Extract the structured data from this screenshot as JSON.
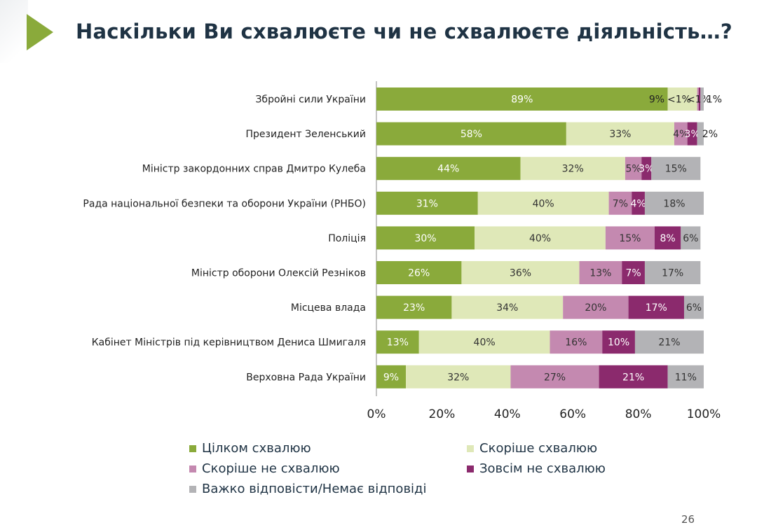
{
  "title": "Наскільки Ви схвалюєте чи не схвалюєте діяльність…?",
  "page_number": "26",
  "chart_data": {
    "type": "bar",
    "orientation": "horizontal",
    "stacked": true,
    "normalized": true,
    "title": "",
    "xlabel": "",
    "ylabel": "",
    "xlim": [
      0,
      100
    ],
    "grid": false,
    "legend_position": "bottom",
    "x_ticks": [
      "0%",
      "20%",
      "40%",
      "60%",
      "80%",
      "100%"
    ],
    "categories": [
      "Збройні сили України",
      "Президент Зеленський",
      "Міністр закордонних справ Дмитро Кулеба",
      "Рада національної безпеки та оборони України (РНБО)",
      "Поліція",
      "Міністр оборони Олексій Резніков",
      "Місцева влада",
      "Кабінет Міністрів під керівництвом Дениса Шмигаля",
      "Верховна Рада України"
    ],
    "series": [
      {
        "name": "Цілком схвалюю",
        "color": "#8aaa3b",
        "values": [
          89,
          58,
          44,
          31,
          30,
          26,
          23,
          13,
          9
        ],
        "labels": [
          "89%",
          "58%",
          "44%",
          "31%",
          "30%",
          "26%",
          "23%",
          "13%",
          "9%"
        ]
      },
      {
        "name": "Скоріше схвалюю",
        "color": "#dfe8b8",
        "values": [
          9,
          33,
          32,
          40,
          40,
          36,
          34,
          40,
          32
        ],
        "labels": [
          "9%",
          "33%",
          "32%",
          "40%",
          "40%",
          "36%",
          "34%",
          "40%",
          "32%"
        ]
      },
      {
        "name": "Скоріше не схвалюю",
        "color": "#c489b0",
        "values": [
          0.5,
          4,
          5,
          7,
          15,
          13,
          20,
          16,
          27
        ],
        "labels": [
          "<1%",
          "4%",
          "5%",
          "7%",
          "15%",
          "13%",
          "20%",
          "16%",
          "27%"
        ]
      },
      {
        "name": "Зовсім не схвалюю",
        "color": "#8b2a6d",
        "values": [
          0.5,
          3,
          3,
          4,
          8,
          7,
          17,
          10,
          21
        ],
        "labels": [
          "<1%",
          "3%",
          "3%",
          "4%",
          "8%",
          "7%",
          "17%",
          "10%",
          "21%"
        ]
      },
      {
        "name": "Важко відповісти/Немає відповіді",
        "color": "#b3b3b6",
        "values": [
          1,
          2,
          15,
          18,
          6,
          17,
          6,
          21,
          11
        ],
        "labels": [
          "1%",
          "2%",
          "15%",
          "18%",
          "6%",
          "17%",
          "6%",
          "21%",
          "11%"
        ]
      }
    ]
  },
  "colors": {
    "title": "#1f3344",
    "accent_arrow": "#8aaa3b"
  }
}
